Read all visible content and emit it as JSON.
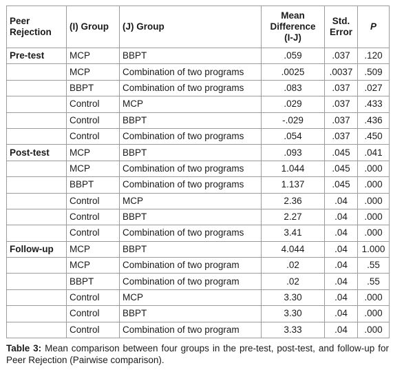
{
  "header": {
    "col1": "Peer\nRejection",
    "col1_line1": "Peer",
    "col1_line2": "Rejection",
    "col2": "(I) Group",
    "col3": "(J) Group",
    "col4_line1": "Mean",
    "col4_line2": "Difference",
    "col4_line3": "(I-J)",
    "col5_line1": "Std.",
    "col5_line2": "Error",
    "col6": "P"
  },
  "rows": [
    {
      "stage": "Pre-test",
      "i": "MCP",
      "j": "BBPT",
      "md": ".059",
      "se": ".037",
      "p": ".120"
    },
    {
      "stage": "",
      "i": "MCP",
      "j": "Combination of two programs",
      "md": ".0025",
      "se": ".0037",
      "p": ".509"
    },
    {
      "stage": "",
      "i": "BBPT",
      "j": "Combination of two programs",
      "md": ".083",
      "se": ".037",
      "p": ".027"
    },
    {
      "stage": "",
      "i": "Control",
      "j": "MCP",
      "md": ".029",
      "se": ".037",
      "p": ".433"
    },
    {
      "stage": "",
      "i": "Control",
      "j": "BBPT",
      "md": "-.029",
      "se": ".037",
      "p": ".436"
    },
    {
      "stage": "",
      "i": "Control",
      "j": "Combination of two programs",
      "md": ".054",
      "se": ".037",
      "p": ".450"
    },
    {
      "stage": "Post-test",
      "i": "MCP",
      "j": "BBPT",
      "md": ".093",
      "se": ".045",
      "p": ".041"
    },
    {
      "stage": "",
      "i": "MCP",
      "j": "Combination of two programs",
      "md": "1.044",
      "se": ".045",
      "p": ".000"
    },
    {
      "stage": "",
      "i": "BBPT",
      "j": "Combination of two programs",
      "md": "1.137",
      "se": ".045",
      "p": ".000"
    },
    {
      "stage": "",
      "i": "Control",
      "j": "MCP",
      "md": "2.36",
      "se": ".04",
      "p": ".000"
    },
    {
      "stage": "",
      "i": "Control",
      "j": "BBPT",
      "md": "2.27",
      "se": ".04",
      "p": ".000"
    },
    {
      "stage": "",
      "i": "Control",
      "j": "Combination of two programs",
      "md": "3.41",
      "se": ".04",
      "p": ".000"
    },
    {
      "stage": "Follow-up",
      "i": "MCP",
      "j": "BBPT",
      "md": "4.044",
      "se": ".04",
      "p": "1.000"
    },
    {
      "stage": "",
      "i": "MCP",
      "j": "Combination of two program",
      "md": ".02",
      "se": ".04",
      "p": ".55"
    },
    {
      "stage": "",
      "i": "BBPT",
      "j": "Combination of two program",
      "md": ".02",
      "se": ".04",
      "p": ".55"
    },
    {
      "stage": "",
      "i": "Control",
      "j": "MCP",
      "md": "3.30",
      "se": ".04",
      "p": ".000"
    },
    {
      "stage": "",
      "i": "Control",
      "j": "BBPT",
      "md": "3.30",
      "se": ".04",
      "p": ".000"
    },
    {
      "stage": "",
      "i": "Control",
      "j": "Combination of two program",
      "md": "3.33",
      "se": ".04",
      "p": ".000"
    }
  ],
  "caption": {
    "label": "Table 3:",
    "text": " Mean comparison between four groups in the pre-test, post-test, and follow-up for Peer Rejection (Pairwise comparison)."
  }
}
